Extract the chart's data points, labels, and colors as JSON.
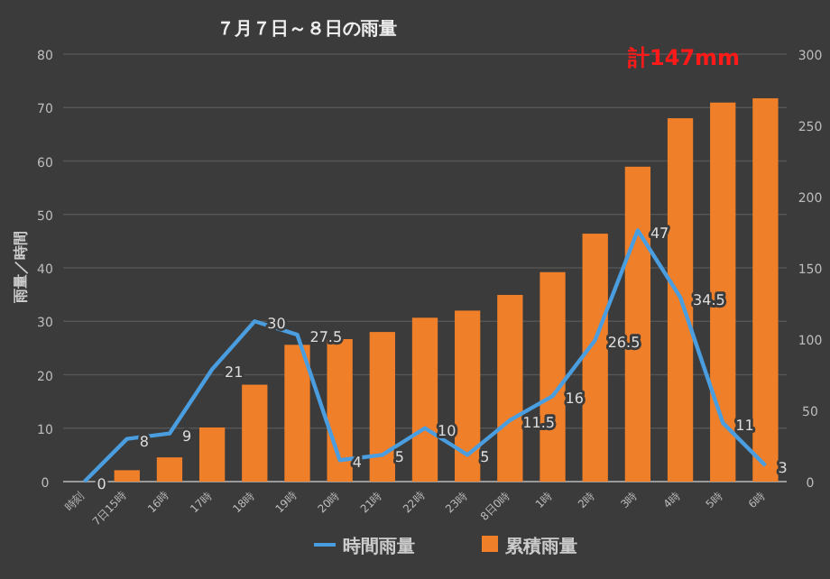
{
  "chart_data": {
    "type": "bar",
    "title": "７月７日～８日の雨量",
    "ylabel": "雨量／時間",
    "categories": [
      "時刻",
      "7日15時",
      "16時",
      "17時",
      "18時",
      "19時",
      "20時",
      "21時",
      "22時",
      "23時",
      "8日0時",
      "1時",
      "2時",
      "3時",
      "4時",
      "5時",
      "6時"
    ],
    "series": [
      {
        "name": "時間雨量",
        "type": "line",
        "color": "#4a9ee0",
        "values": [
          0,
          8,
          9,
          21,
          30,
          27.5,
          4,
          5,
          10,
          5,
          11.5,
          16,
          26.5,
          47,
          34.5,
          11,
          3
        ],
        "value_labels": [
          "0",
          "8",
          "9",
          "21",
          "30",
          "27.5",
          "4",
          "5",
          "10",
          "5",
          "11.5",
          "16",
          "26.5",
          "47",
          "34.5",
          "11",
          "3"
        ]
      },
      {
        "name": "累積雨量",
        "axis": "y2",
        "color": "#f07f2a",
        "values": [
          0,
          8,
          17,
          38,
          68,
          96,
          100,
          105,
          115,
          120,
          131,
          147,
          174,
          221,
          255,
          266,
          269
        ]
      }
    ],
    "ylim": [
      0,
      80
    ],
    "yticks": [
      0,
      10,
      20,
      30,
      40,
      50,
      60,
      70,
      80
    ],
    "y2lim": [
      0,
      300
    ],
    "y2ticks": [
      0,
      50,
      100,
      150,
      200,
      250,
      300
    ],
    "grid": "y",
    "legend": "bottom",
    "marker": "none",
    "annotations": [
      "計147mm"
    ]
  }
}
